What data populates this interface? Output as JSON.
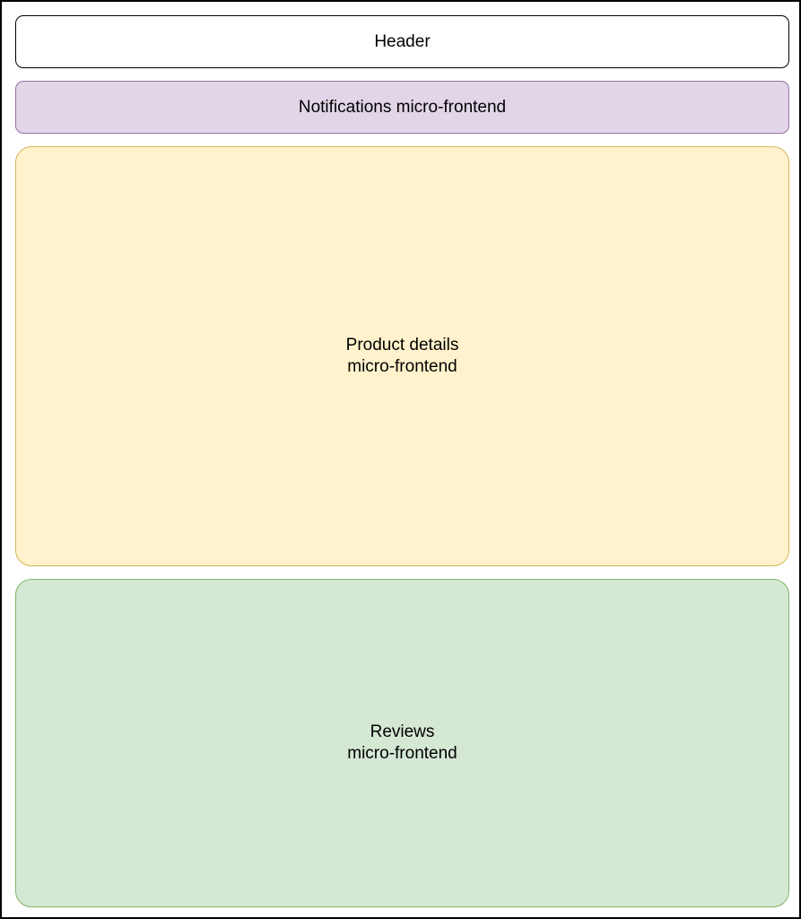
{
  "header": {
    "label": "Header",
    "fill": "#ffffff",
    "stroke": "#000000"
  },
  "notifications": {
    "label": "Notifications micro-frontend",
    "fill": "#e1d5e7",
    "stroke": "#9673a6"
  },
  "product_details": {
    "line1": "Product details",
    "line2": "micro-frontend",
    "fill": "#fff2cc",
    "stroke": "#d6b656"
  },
  "reviews": {
    "line1": "Reviews",
    "line2": "micro-frontend",
    "fill": "#d5e8d4",
    "stroke": "#82b366"
  }
}
